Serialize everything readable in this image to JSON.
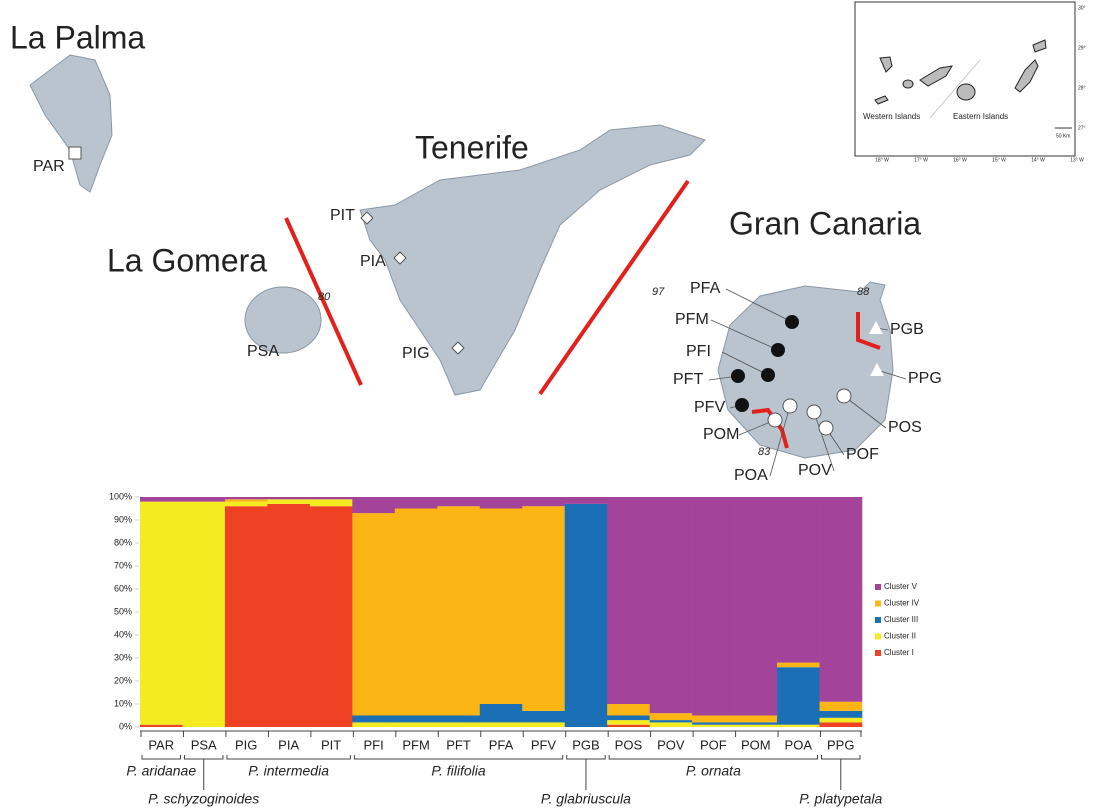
{
  "map": {
    "islands": [
      "La Palma",
      "La Gomera",
      "Tenerife",
      "Gran Canaria"
    ],
    "sites": [
      {
        "label": "PAR",
        "marker": "square"
      },
      {
        "label": "PSA",
        "marker": "none"
      },
      {
        "label": "PIT",
        "marker": "diamond"
      },
      {
        "label": "PIA",
        "marker": "diamond"
      },
      {
        "label": "PIG",
        "marker": "diamond"
      },
      {
        "label": "PFA",
        "marker": "black-circle"
      },
      {
        "label": "PFM",
        "marker": "black-circle"
      },
      {
        "label": "PFI",
        "marker": "black-circle"
      },
      {
        "label": "PFT",
        "marker": "black-circle"
      },
      {
        "label": "PFV",
        "marker": "black-circle"
      },
      {
        "label": "POM",
        "marker": "white-circle"
      },
      {
        "label": "POA",
        "marker": "white-circle"
      },
      {
        "label": "POV",
        "marker": "white-circle"
      },
      {
        "label": "POF",
        "marker": "white-circle"
      },
      {
        "label": "POS",
        "marker": "white-circle"
      },
      {
        "label": "PPG",
        "marker": "triangle"
      },
      {
        "label": "PGB",
        "marker": "triangle"
      }
    ],
    "barriers": [
      "80",
      "97",
      "88",
      "83"
    ],
    "inset": {
      "regions": [
        "Western Islands",
        "Eastern Islands"
      ],
      "scale": "50 Km",
      "lat": [
        "30°",
        "29°",
        "28°",
        "27°"
      ],
      "lon": [
        "18° W",
        "17° W",
        "16° W",
        "15° W",
        "14° W",
        "13° W"
      ]
    }
  },
  "chart_data": {
    "type": "stacked-bar",
    "categories": [
      "PAR",
      "PSA",
      "PIG",
      "PIA",
      "PIT",
      "PFI",
      "PFM",
      "PFT",
      "PFA",
      "PFV",
      "PGB",
      "POS",
      "POV",
      "POF",
      "POM",
      "POA",
      "PPG"
    ],
    "ylim": [
      0,
      100
    ],
    "yticks": [
      {
        "value": 0,
        "label": "0%"
      },
      {
        "value": 10,
        "label": "10%"
      },
      {
        "value": 20,
        "label": "20%"
      },
      {
        "value": 30,
        "label": "30%"
      },
      {
        "value": 40,
        "label": "40%"
      },
      {
        "value": 50,
        "label": "50%"
      },
      {
        "value": 60,
        "label": "60%"
      },
      {
        "value": 70,
        "label": "70%"
      },
      {
        "value": 80,
        "label": "80%"
      },
      {
        "value": 90,
        "label": "90%"
      },
      {
        "value": 100,
        "label": "100%"
      }
    ],
    "series": [
      {
        "name": "Cluster V",
        "color": "#a3449a",
        "values": [
          2,
          2,
          1,
          1,
          1,
          7,
          5,
          4,
          5,
          4,
          3,
          90,
          94,
          95,
          95,
          72,
          89
        ]
      },
      {
        "name": "Cluster IV",
        "color": "#fbb515",
        "values": [
          0,
          0,
          1,
          0,
          0,
          88,
          90,
          91,
          85,
          89,
          0,
          5,
          3,
          3,
          3,
          2,
          4
        ]
      },
      {
        "name": "Cluster III",
        "color": "#1a6fb5",
        "values": [
          0,
          0,
          0,
          0,
          0,
          3,
          3,
          3,
          8,
          5,
          97,
          2,
          1,
          1,
          1,
          25,
          3
        ]
      },
      {
        "name": "Cluster II",
        "color": "#f4ec21",
        "values": [
          97,
          98,
          2,
          2,
          3,
          2,
          2,
          2,
          2,
          2,
          0,
          2,
          2,
          1,
          1,
          1,
          2
        ]
      },
      {
        "name": "Cluster I",
        "color": "#ef4123",
        "values": [
          1,
          0,
          96,
          97,
          96,
          0,
          0,
          0,
          0,
          0,
          0,
          1,
          0,
          0,
          0,
          0,
          2
        ]
      }
    ],
    "species": [
      {
        "name": "P. aridanae",
        "populations": [
          "PAR"
        ]
      },
      {
        "name": "P. schyzoginoides",
        "populations": [
          "PSA"
        ]
      },
      {
        "name": "P. intermedia",
        "populations": [
          "PIG",
          "PIA",
          "PIT"
        ]
      },
      {
        "name": "P. filifolia",
        "populations": [
          "PFI",
          "PFM",
          "PFT",
          "PFA",
          "PFV"
        ]
      },
      {
        "name": "P. glabriuscula",
        "populations": [
          "PGB"
        ]
      },
      {
        "name": "P. ornata",
        "populations": [
          "POS",
          "POV",
          "POF",
          "POM",
          "POA"
        ]
      },
      {
        "name": "P. platypetala",
        "populations": [
          "PPG"
        ]
      }
    ]
  }
}
